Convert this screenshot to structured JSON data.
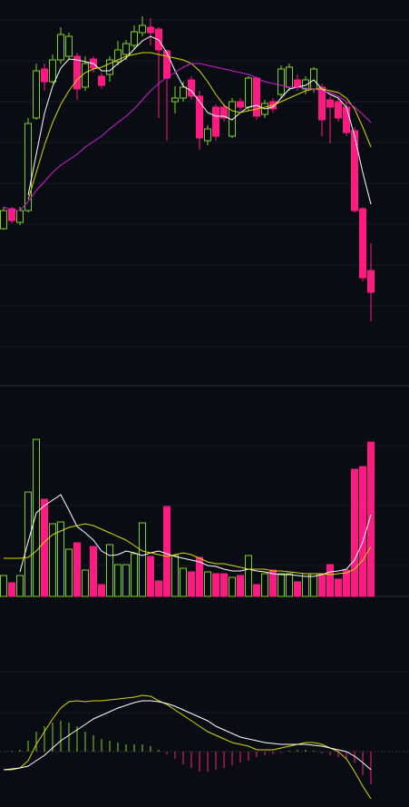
{
  "chart_data": [
    {
      "type": "candlestick",
      "up_color": "#7ed321",
      "down_color": "#ff1a82",
      "ylim": [
        0,
        425
      ],
      "open": [
        173,
        195,
        180,
        193,
        295,
        349,
        335,
        359,
        363,
        363,
        329,
        360,
        341,
        343,
        357,
        365,
        375,
        389,
        395,
        393,
        369,
        313,
        317,
        337,
        319,
        270,
        307,
        307,
        275,
        313,
        307,
        339,
        299,
        313,
        321,
        329,
        337,
        327,
        327,
        329,
        315,
        313,
        307,
        281,
        195,
        127
      ],
      "close": [
        193,
        182,
        193,
        289,
        347,
        335,
        359,
        387,
        385,
        327,
        355,
        350,
        331,
        359,
        370,
        377,
        390,
        397,
        389,
        370,
        339,
        317,
        329,
        319,
        273,
        283,
        275,
        295,
        313,
        307,
        339,
        297,
        311,
        305,
        349,
        351,
        329,
        337,
        349,
        293,
        307,
        295,
        279,
        193,
        119,
        103
      ],
      "high": [
        197,
        197,
        197,
        295,
        355,
        355,
        365,
        395,
        389,
        367,
        363,
        363,
        345,
        363,
        380,
        381,
        397,
        407,
        405,
        395,
        370,
        330,
        335,
        341,
        325,
        287,
        310,
        311,
        317,
        317,
        341,
        341,
        315,
        317,
        353,
        355,
        343,
        341,
        351,
        333,
        319,
        317,
        313,
        285,
        197,
        157
      ],
      "low": [
        172,
        179,
        177,
        191,
        293,
        325,
        333,
        355,
        359,
        315,
        325,
        345,
        327,
        335,
        353,
        359,
        371,
        385,
        375,
        295,
        270,
        300,
        313,
        315,
        260,
        265,
        270,
        291,
        273,
        303,
        303,
        293,
        295,
        301,
        317,
        325,
        325,
        321,
        323,
        275,
        267,
        291,
        275,
        191,
        115,
        71
      ],
      "series": [
        {
          "color": "#ffffff",
          "values": [
            null,
            null,
            null,
            210,
            255,
            300,
            330,
            350,
            360,
            359,
            357,
            355,
            347,
            347,
            355,
            361,
            371,
            380,
            385,
            381,
            367,
            347,
            330,
            325,
            313,
            301,
            297,
            297,
            293,
            301,
            307,
            309,
            305,
            307,
            317,
            327,
            329,
            331,
            337,
            327,
            321,
            317,
            307,
            275,
            235,
            200
          ]
        },
        {
          "color": "#d8d800",
          "values": [
            null,
            null,
            null,
            205,
            235,
            265,
            290,
            310,
            325,
            337,
            345,
            349,
            351,
            355,
            359,
            363,
            365,
            367,
            367,
            365,
            363,
            361,
            359,
            355,
            347,
            335,
            321,
            309,
            303,
            301,
            303,
            305,
            307,
            309,
            313,
            317,
            321,
            325,
            327,
            327,
            325,
            323,
            317,
            305,
            285,
            263
          ]
        },
        {
          "color": "#d21ed2",
          "values": [
            197,
            193,
            193,
            203,
            215,
            225,
            235,
            243,
            249,
            255,
            263,
            269,
            275,
            283,
            290,
            297,
            305,
            315,
            325,
            333,
            340,
            345,
            351,
            355,
            355,
            353,
            351,
            349,
            347,
            345,
            343,
            339,
            335,
            333,
            331,
            329,
            329,
            328,
            327,
            325,
            323,
            319,
            313,
            307,
            299,
            290
          ]
        }
      ]
    },
    {
      "type": "volume",
      "ylim": [
        0,
        232
      ],
      "values": [
        23,
        15,
        23,
        115,
        173,
        107,
        80,
        82,
        52,
        59,
        29,
        55,
        13,
        57,
        35,
        35,
        47,
        81,
        44,
        17,
        99,
        45,
        31,
        27,
        43,
        27,
        25,
        25,
        21,
        23,
        45,
        13,
        25,
        29,
        25,
        25,
        16,
        25,
        25,
        25,
        35,
        19,
        29,
        140,
        143,
        170
      ],
      "series": [
        {
          "color": "#ffffff",
          "values": [
            null,
            null,
            27,
            60,
            92,
            100,
            106,
            112,
            95,
            77,
            70,
            62,
            50,
            45,
            46,
            50,
            48,
            45,
            48,
            50,
            47,
            44,
            42,
            40,
            38,
            34,
            33,
            30,
            28,
            28,
            30,
            28,
            27,
            25,
            24,
            24,
            23,
            22,
            22,
            24,
            27,
            28,
            30,
            40,
            60,
            90
          ]
        },
        {
          "color": "#d8d800",
          "values": [
            42,
            42,
            42,
            43,
            50,
            60,
            68,
            72,
            76,
            78,
            80,
            78,
            74,
            70,
            66,
            62,
            56,
            50,
            48,
            46,
            44,
            46,
            48,
            46,
            42,
            38,
            36,
            36,
            34,
            32,
            30,
            30,
            30,
            28,
            28,
            27,
            26,
            25,
            25,
            25,
            24,
            25,
            26,
            30,
            40,
            55
          ]
        }
      ]
    },
    {
      "type": "macd",
      "ylim": [
        -61,
        108
      ],
      "up_color": "#7ed321",
      "down_color": "#ff1a82",
      "values": [
        0,
        1,
        2,
        12,
        22,
        28,
        32,
        34,
        32,
        28,
        22,
        18,
        14,
        12,
        10,
        8,
        8,
        8,
        6,
        2,
        -3,
        -8,
        -14,
        -18,
        -22,
        -22,
        -20,
        -18,
        -15,
        -12,
        -10,
        -6,
        -4,
        -3,
        -1,
        1,
        2,
        2,
        1,
        -2,
        -4,
        -6,
        -8,
        -12,
        -26,
        -36
      ],
      "series": [
        {
          "color": "#d8d800",
          "values": [
            -20,
            -20,
            -18,
            -10,
            8,
            22,
            36,
            48,
            55,
            56,
            55,
            56,
            56,
            57,
            58,
            59,
            60,
            62,
            61,
            56,
            52,
            46,
            40,
            34,
            28,
            22,
            18,
            14,
            10,
            8,
            6,
            2,
            2,
            2,
            4,
            6,
            8,
            10,
            10,
            8,
            4,
            0,
            -8,
            -22,
            -38,
            -52
          ]
        },
        {
          "color": "#ffffff",
          "values": [
            -20,
            -19,
            -18,
            -16,
            -10,
            -4,
            4,
            12,
            18,
            24,
            30,
            36,
            40,
            44,
            48,
            51,
            54,
            56,
            56,
            55,
            53,
            50,
            46,
            42,
            38,
            34,
            28,
            24,
            20,
            16,
            14,
            12,
            10,
            9,
            8,
            8,
            8,
            8,
            7,
            6,
            4,
            2,
            0,
            -5,
            -12,
            -20
          ]
        }
      ]
    }
  ]
}
